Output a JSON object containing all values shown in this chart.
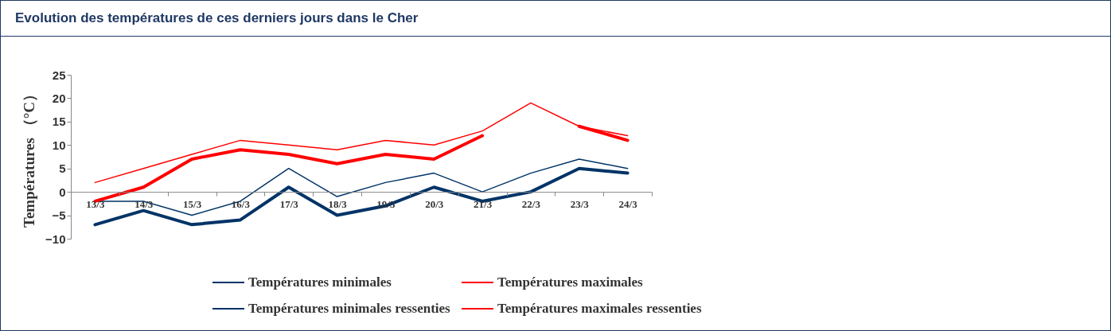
{
  "chart_data": {
    "type": "line",
    "title": "Evolution des températures de ces derniers jours dans le Cher",
    "ylabel": "Températures （°C）",
    "categories": [
      "13/3",
      "14/3",
      "15/3",
      "16/3",
      "17/3",
      "18/3",
      "19/3",
      "20/3",
      "21/3",
      "22/3",
      "23/3",
      "24/3"
    ],
    "series": [
      {
        "name": "Températures minimales",
        "color": "#003366",
        "values": [
          -2,
          -2,
          -5,
          -2,
          5,
          -1,
          2,
          4,
          0,
          4,
          7,
          5
        ]
      },
      {
        "name": "Températures maximales",
        "color": "#ff0000",
        "values": [
          2,
          5,
          8,
          11,
          10,
          9,
          11,
          10,
          13,
          19,
          14,
          12
        ]
      },
      {
        "name": "Températures minimales ressenties",
        "color": "#003366",
        "values": [
          -7,
          -4,
          -7,
          -6,
          1,
          -5,
          -3,
          1,
          -2,
          0,
          5,
          4
        ]
      },
      {
        "name": "Températures maximales ressenties",
        "color": "#ff0000",
        "values": [
          -2,
          1,
          7,
          9,
          8,
          6,
          8,
          7,
          12,
          null,
          14,
          11
        ]
      }
    ],
    "ylim": [
      -10,
      25
    ],
    "yticks": [
      -10,
      -5,
      0,
      5,
      10,
      15,
      20,
      25
    ],
    "grid": false,
    "legend": "bottom",
    "marker": "none",
    "line_style": "solid"
  }
}
